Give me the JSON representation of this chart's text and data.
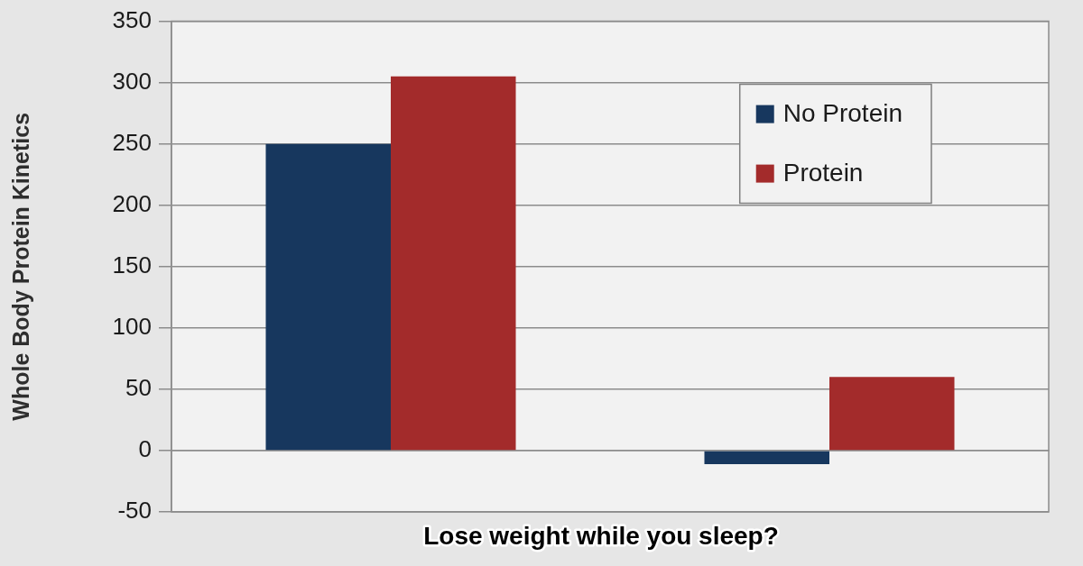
{
  "chart_data": {
    "type": "bar",
    "ylabel": "Whole Body Protein Kinetics",
    "categories": [
      null,
      null
    ],
    "series": [
      {
        "name": "No Protein",
        "color": "#17375e",
        "values": [
          250,
          -11
        ]
      },
      {
        "name": "Protein",
        "color": "#a32b2b",
        "values": [
          305,
          60
        ]
      }
    ],
    "ylim": [
      -50,
      350
    ],
    "yticks": [
      -50,
      0,
      50,
      100,
      150,
      200,
      250,
      300,
      350
    ],
    "grid": "y",
    "legend": "top right",
    "annotations": [
      "Lose weight while you sleep?"
    ]
  }
}
